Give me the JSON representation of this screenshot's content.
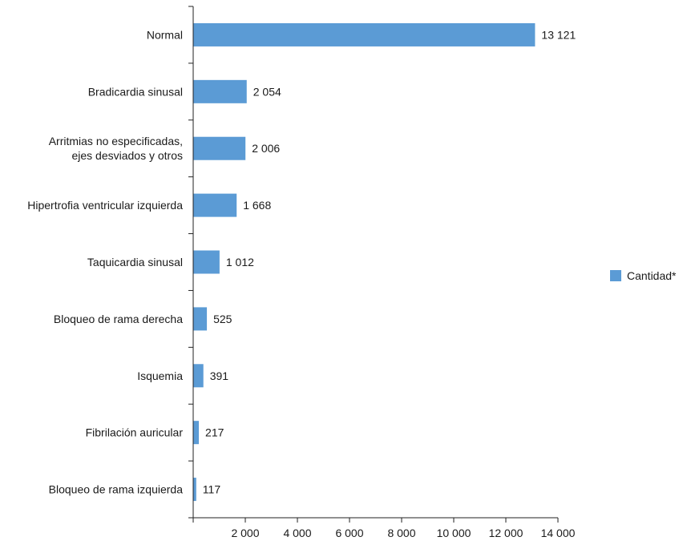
{
  "chart_data": {
    "type": "bar",
    "orientation": "horizontal",
    "categories": [
      [
        "Normal"
      ],
      [
        "Bradicardia sinusal"
      ],
      [
        "Arritmias no especificadas,",
        "ejes desviados y otros"
      ],
      [
        "Hipertrofia ventricular izquierda"
      ],
      [
        "Taquicardia sinusal"
      ],
      [
        "Bloqueo de rama derecha"
      ],
      [
        "Isquemia"
      ],
      [
        "Fibrilación auricular"
      ],
      [
        "Bloqueo de rama izquierda"
      ]
    ],
    "series": [
      {
        "name": "Cantidad*",
        "color": "#5b9bd5",
        "values": [
          13121,
          2054,
          2006,
          1668,
          1012,
          525,
          391,
          217,
          117
        ],
        "value_labels": [
          "13 121",
          "2 054",
          "2 006",
          "1 668",
          "1 012",
          "525",
          "391",
          "217",
          "117"
        ]
      }
    ],
    "xlim": [
      0,
      14000
    ],
    "x_ticks": [
      0,
      2000,
      4000,
      6000,
      8000,
      10000,
      12000,
      14000
    ],
    "x_tick_labels": [
      "",
      "2 000",
      "4 000",
      "6 000",
      "8 000",
      "10 000",
      "12 000",
      "14 000"
    ],
    "title": "",
    "xlabel": "",
    "ylabel": "",
    "grid": false,
    "legend_position": "right"
  }
}
